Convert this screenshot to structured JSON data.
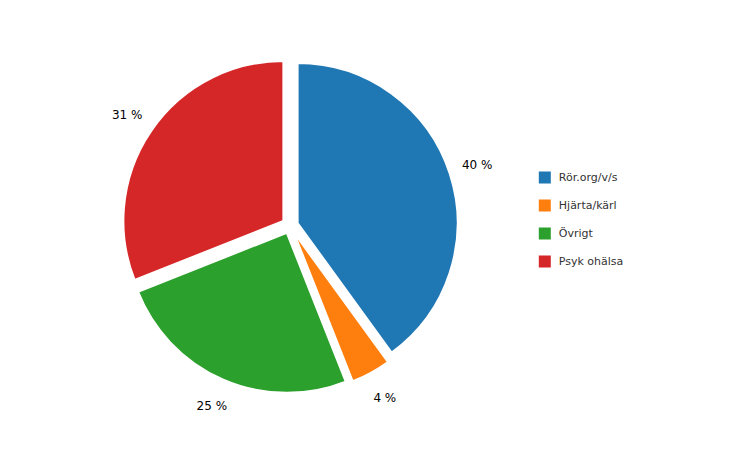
{
  "chart_data": {
    "type": "pie",
    "categories": [
      "Rör.org/v/s",
      "Hjärta/kärl",
      "Övrigt",
      "Psyk ohälsa"
    ],
    "values": [
      40,
      4,
      25,
      31
    ],
    "value_labels": [
      "40 %",
      "4 %",
      "25 %",
      "31 %"
    ],
    "data_labels": true,
    "legend": "right"
  }
}
